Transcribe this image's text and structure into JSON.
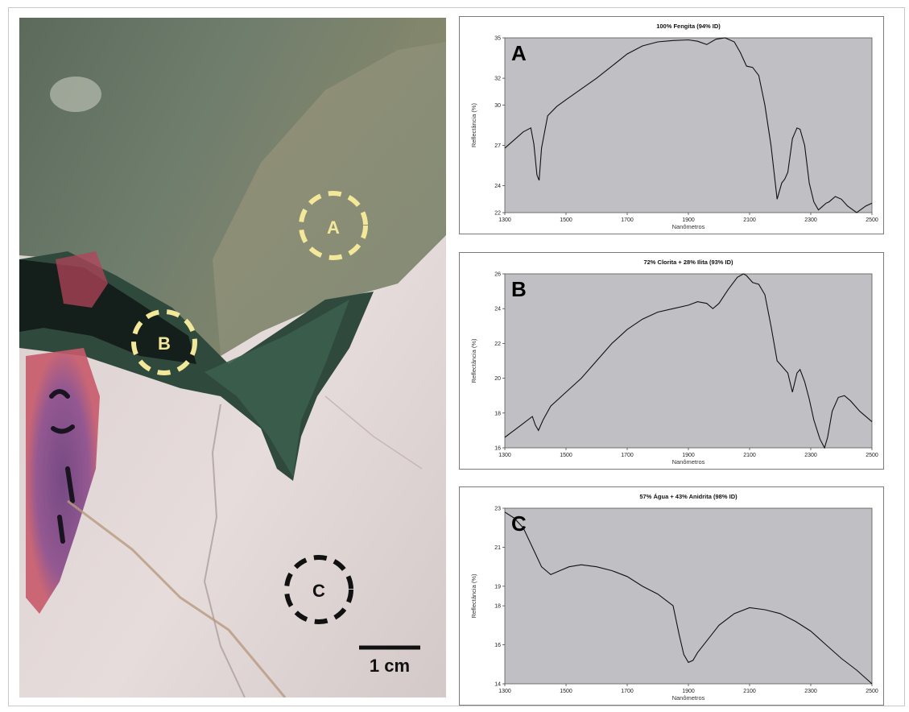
{
  "photo": {
    "markers": [
      {
        "label": "A",
        "color": "#f3e79a"
      },
      {
        "label": "B",
        "color": "#f3e79a"
      },
      {
        "label": "C",
        "color": "#111111"
      }
    ],
    "scale_label": "1 cm"
  },
  "chart_data": [
    {
      "type": "line",
      "panel": "A",
      "title": "100% Fengita (94% ID)",
      "xlabel": "Nanômetros",
      "ylabel": "Reflectância (%)",
      "xlim": [
        1300,
        2500
      ],
      "ylim": [
        22,
        35
      ],
      "xticks": [
        1300,
        1500,
        1700,
        1900,
        2100,
        2300,
        2500
      ],
      "yticks": [
        22,
        24,
        27,
        30,
        32,
        35
      ],
      "background": "#c0c0c4",
      "series": [
        {
          "x": [
            1300,
            1330,
            1360,
            1385,
            1395,
            1405,
            1412,
            1420,
            1440,
            1470,
            1500,
            1550,
            1600,
            1650,
            1700,
            1750,
            1800,
            1850,
            1900,
            1930,
            1960,
            1990,
            2020,
            2050,
            2070,
            2090,
            2110,
            2130,
            2150,
            2170,
            2190,
            2205,
            2215,
            2225,
            2240,
            2255,
            2265,
            2280,
            2295,
            2310,
            2325,
            2340,
            2350,
            2360,
            2380,
            2400,
            2420,
            2450,
            2480,
            2500
          ],
          "y": [
            26.8,
            27.4,
            28.0,
            28.3,
            27.1,
            24.8,
            24.4,
            26.8,
            29.2,
            29.9,
            30.4,
            31.2,
            32.0,
            32.9,
            33.8,
            34.4,
            34.7,
            34.8,
            34.85,
            34.75,
            34.5,
            34.9,
            35.0,
            34.7,
            33.9,
            32.9,
            32.8,
            32.2,
            30.0,
            27.0,
            23.0,
            24.2,
            24.5,
            25.0,
            27.5,
            28.3,
            28.2,
            27.0,
            24.2,
            22.8,
            22.2,
            22.5,
            22.7,
            22.8,
            23.2,
            23.0,
            22.5,
            22.0,
            22.5,
            22.7
          ]
        }
      ]
    },
    {
      "type": "line",
      "panel": "B",
      "title": "72% Clorita + 28% Ilita (93% ID)",
      "xlabel": "Nanômetros",
      "ylabel": "Reflectância (%)",
      "xlim": [
        1300,
        2500
      ],
      "ylim": [
        16,
        26
      ],
      "xticks": [
        1300,
        1500,
        1700,
        1900,
        2100,
        2300,
        2500
      ],
      "yticks": [
        16,
        18,
        20,
        22,
        24,
        26
      ],
      "background": "#c0c0c4",
      "series": [
        {
          "x": [
            1300,
            1330,
            1360,
            1390,
            1400,
            1410,
            1425,
            1450,
            1500,
            1550,
            1600,
            1650,
            1700,
            1750,
            1800,
            1850,
            1900,
            1930,
            1960,
            1980,
            2000,
            2030,
            2060,
            2080,
            2090,
            2110,
            2130,
            2150,
            2170,
            2190,
            2210,
            2225,
            2240,
            2255,
            2265,
            2280,
            2295,
            2310,
            2330,
            2345,
            2355,
            2370,
            2390,
            2410,
            2430,
            2460,
            2500
          ],
          "y": [
            16.6,
            17.0,
            17.4,
            17.8,
            17.3,
            17.0,
            17.6,
            18.4,
            19.2,
            20.0,
            21.0,
            22.0,
            22.8,
            23.4,
            23.8,
            24.0,
            24.2,
            24.4,
            24.3,
            24.0,
            24.3,
            25.1,
            25.8,
            26.0,
            25.9,
            25.5,
            25.4,
            24.8,
            23.0,
            21.0,
            20.6,
            20.3,
            19.2,
            20.3,
            20.5,
            19.8,
            18.8,
            17.6,
            16.5,
            16.0,
            16.6,
            18.1,
            18.9,
            19.0,
            18.7,
            18.1,
            17.5
          ]
        }
      ]
    },
    {
      "type": "line",
      "panel": "C",
      "title": "57% Água + 43% Anidrita (98% ID)",
      "xlabel": "Nanômetros",
      "ylabel": "Reflectância (%)",
      "xlim": [
        1300,
        2500
      ],
      "ylim": [
        14,
        23
      ],
      "xticks": [
        1300,
        1500,
        1700,
        1900,
        2100,
        2300,
        2500
      ],
      "yticks": [
        14,
        16,
        18,
        19,
        21,
        23
      ],
      "background": "#c0c0c4",
      "series": [
        {
          "x": [
            1300,
            1330,
            1360,
            1390,
            1420,
            1450,
            1480,
            1510,
            1550,
            1600,
            1650,
            1700,
            1750,
            1800,
            1850,
            1870,
            1885,
            1900,
            1915,
            1930,
            1960,
            2000,
            2050,
            2100,
            2150,
            2200,
            2250,
            2300,
            2350,
            2400,
            2450,
            2500
          ],
          "y": [
            22.8,
            22.5,
            22.0,
            21.0,
            20.0,
            19.6,
            19.8,
            20.0,
            20.1,
            20.0,
            19.8,
            19.5,
            19.0,
            18.6,
            18.0,
            16.5,
            15.5,
            15.1,
            15.2,
            15.6,
            16.2,
            17.0,
            17.6,
            17.9,
            17.8,
            17.6,
            17.2,
            16.7,
            16.0,
            15.3,
            14.7,
            14.0
          ]
        }
      ]
    }
  ]
}
